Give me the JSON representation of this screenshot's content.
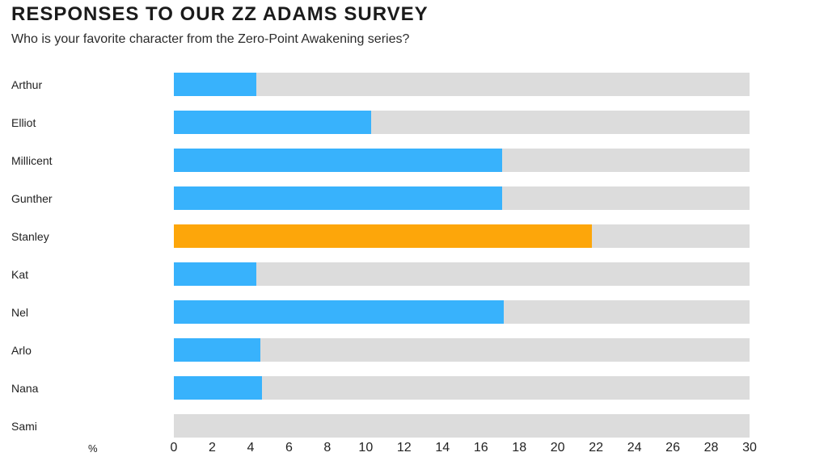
{
  "header": {
    "title": "RESPONSES TO OUR ZZ ADAMS SURVEY",
    "subtitle": "Who is your favorite character from the Zero-Point Awakening series?"
  },
  "chart_data": {
    "type": "bar",
    "orientation": "horizontal",
    "title": "RESPONSES TO OUR ZZ ADAMS SURVEY",
    "subtitle": "Who is your favorite character from the Zero-Point Awakening series?",
    "categories": [
      "Arthur",
      "Elliot",
      "Millicent",
      "Gunther",
      "Stanley",
      "Kat",
      "Nel",
      "Arlo",
      "Nana",
      "Sami"
    ],
    "values": [
      4.3,
      10.3,
      17.1,
      17.1,
      21.8,
      4.3,
      17.2,
      4.5,
      4.6,
      0
    ],
    "highlight_index": 4,
    "highlight_category": "Stanley",
    "xlabel": "%",
    "ylabel": "",
    "xlim": [
      0,
      30
    ],
    "x_ticks": [
      0,
      2,
      4,
      6,
      8,
      10,
      12,
      14,
      16,
      18,
      20,
      22,
      24,
      26,
      28,
      30
    ],
    "grid": false,
    "legend": "none",
    "colors": {
      "bar": "#38B2FC",
      "highlight": "#FDA60A",
      "track": "#DCDCDC",
      "text": "#222222",
      "title": "#1B1B1B"
    }
  }
}
